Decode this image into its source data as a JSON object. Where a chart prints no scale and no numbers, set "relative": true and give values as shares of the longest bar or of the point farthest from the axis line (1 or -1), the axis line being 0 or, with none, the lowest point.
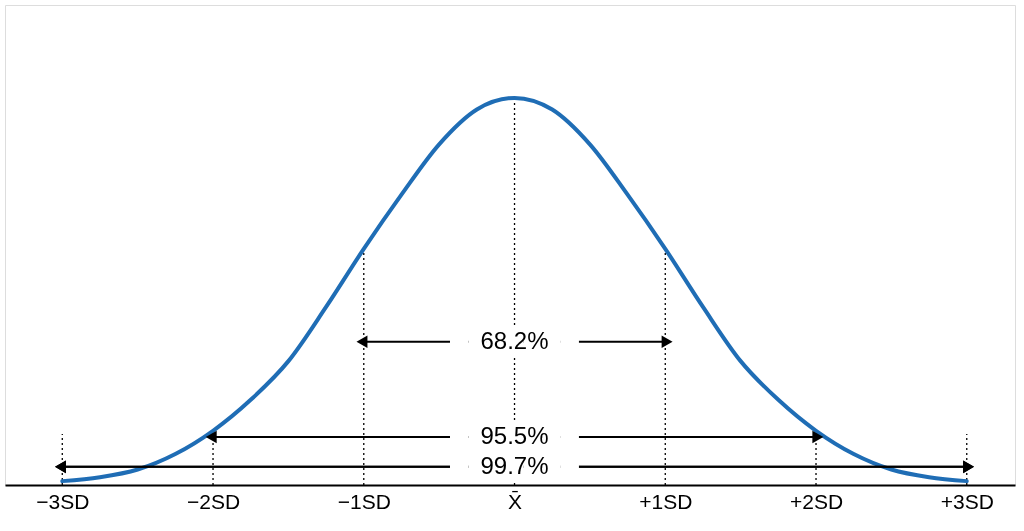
{
  "chart_data": {
    "type": "line",
    "relative": true,
    "x": [
      -3,
      -2.75,
      -2.5,
      -2.25,
      -2,
      -1.75,
      -1.5,
      -1.25,
      -1,
      -0.75,
      -0.5,
      -0.25,
      0,
      0.25,
      0.5,
      0.75,
      1,
      1.25,
      1.5,
      1.75,
      2,
      2.25,
      2.5,
      2.75,
      3
    ],
    "series": [
      {
        "color": "#1f6db5",
        "values": [
          0.01,
          0.02,
          0.04,
          0.08,
          0.14,
          0.22,
          0.32,
          0.46,
          0.61,
          0.75,
          0.88,
          0.97,
          1,
          0.97,
          0.88,
          0.75,
          0.61,
          0.46,
          0.32,
          0.22,
          0.14,
          0.08,
          0.04,
          0.02,
          0.01
        ]
      },
      {
        "type": "line",
        "color": "#000000",
        "marker": "triangle",
        "x": [
          -3,
          3
        ],
        "values": [
          0.047,
          0.047
        ]
      }
    ],
    "xlim": [
      -3.38,
      3.32
    ],
    "xticks": [
      {
        "value": -3,
        "label": "−3SD"
      },
      {
        "value": -2,
        "label": "−2SD"
      },
      {
        "value": -1,
        "label": "−1SD"
      },
      {
        "value": 0,
        "label": "X̄"
      },
      {
        "value": 1,
        "label": "+1SD"
      },
      {
        "value": 2,
        "label": "+2SD"
      },
      {
        "value": 3,
        "label": "+3SD"
      }
    ],
    "tick_labels": "x",
    "grid": false,
    "marker": "none",
    "line_style": "solid",
    "ref_lines": [
      {
        "axis": "x",
        "value": -3,
        "line_style": "dotted"
      },
      {
        "axis": "x",
        "value": -2,
        "line_style": "dotted"
      },
      {
        "axis": "x",
        "value": -1,
        "line_style": "dotted"
      },
      {
        "axis": "x",
        "value": 0,
        "line_style": "dotted"
      },
      {
        "axis": "x",
        "value": 1,
        "line_style": "dotted"
      },
      {
        "axis": "x",
        "value": 2,
        "line_style": "dotted"
      },
      {
        "axis": "x",
        "value": 3,
        "line_style": "dotted"
      }
    ],
    "annotations": [
      {
        "text": "68.2%",
        "y": 0.37
      },
      {
        "text": "95.5%",
        "y": 0.124
      },
      {
        "text": "99.7%",
        "y": 0.047
      }
    ]
  }
}
